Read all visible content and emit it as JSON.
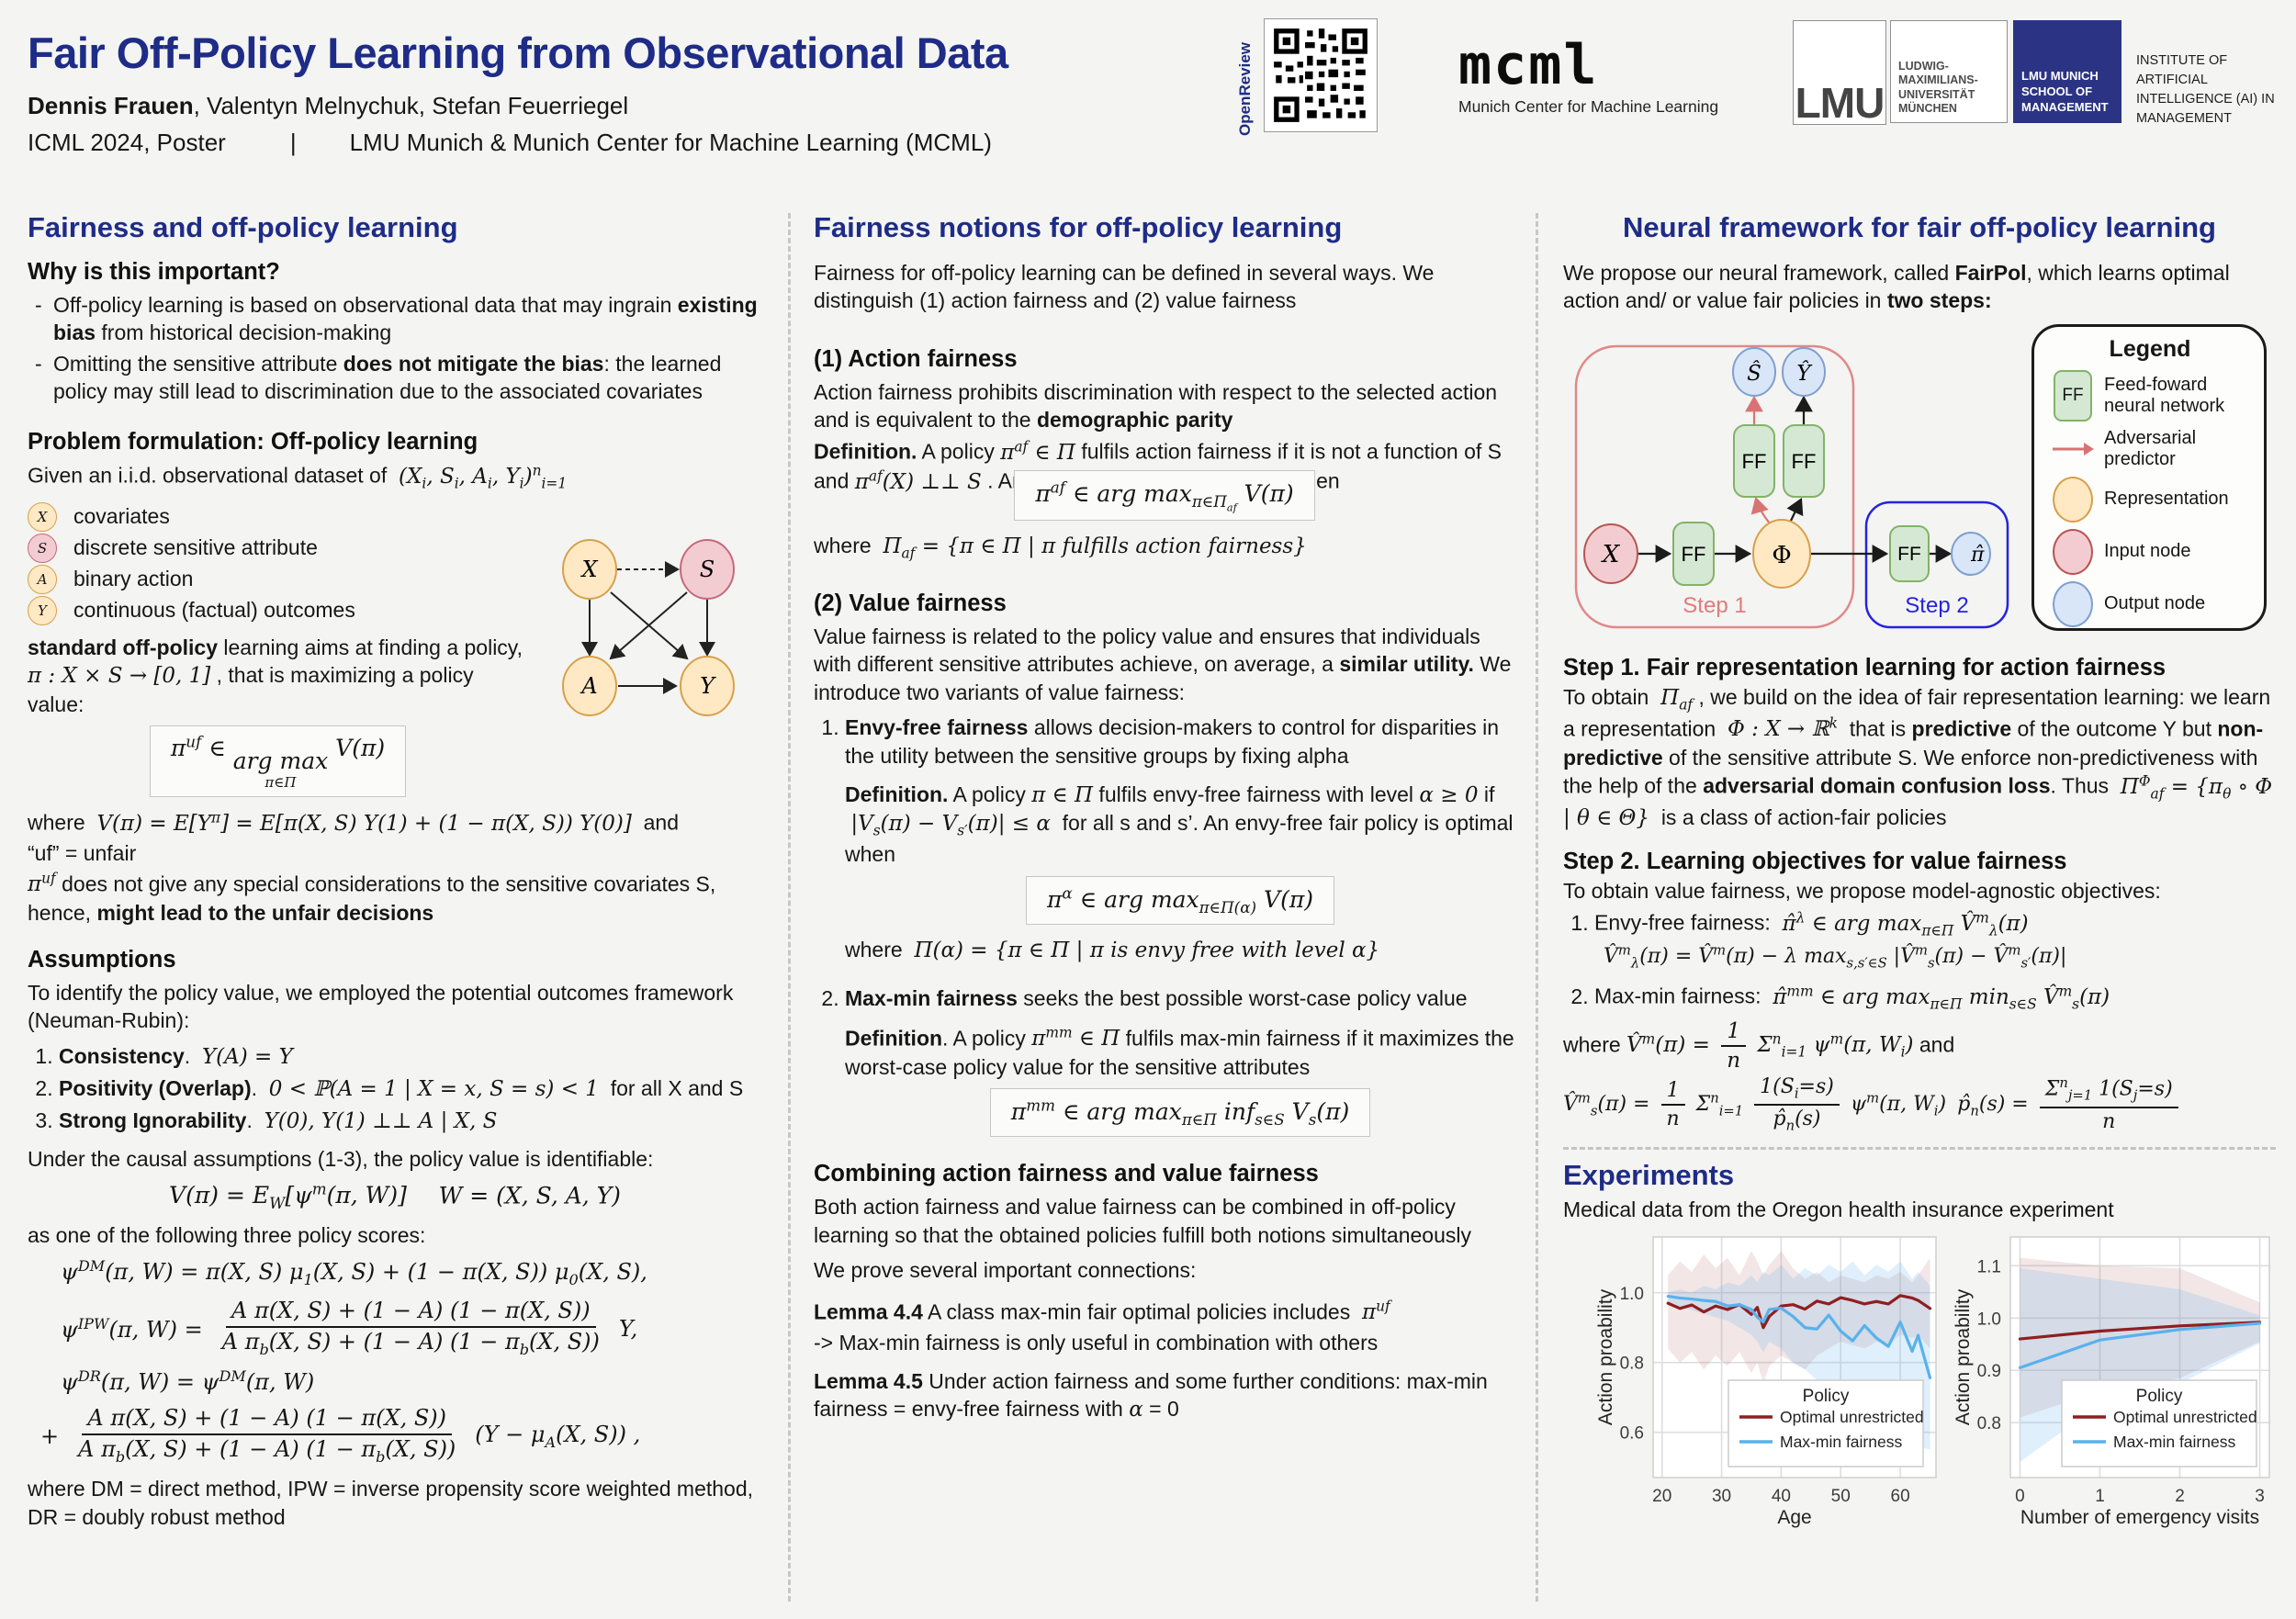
{
  "colors": {
    "accent_navy": "#1e2c87",
    "step1_red": "#e07b7b",
    "step2_blue": "#2424dd",
    "chart_red": "#8f1f1f",
    "chart_blue": "#58b2ec",
    "node_tan": "#ffe9c4",
    "node_pink": "#f3ccd1",
    "node_blue": "#d9e6f8",
    "ff_green": "#d5e8d4"
  },
  "header": {
    "title": "Fair Off-Policy Learning from Observational Data",
    "authors_bold": "Dennis Frauen",
    "authors_rest": ", Valentyn Melnychuk, Stefan Feuerriegel",
    "venue": "ICML 2024, Poster",
    "separator": "|",
    "affiliation": "LMU Munich & Munich Center for Machine Learning (MCML)",
    "openreview_label": "OpenReview",
    "mcml_logo": "mcml",
    "mcml_caption": "Munich Center for Machine Learning",
    "lmu_short": "LMU",
    "lmu_full_lines": [
      "LUDWIG-",
      "MAXIMILIANS-",
      "UNIVERSITÄT",
      "MÜNCHEN"
    ],
    "lmu_som_lines": [
      "LMU MUNICH",
      "SCHOOL OF",
      "MANAGEMENT"
    ],
    "institute_lines": [
      "INSTITUTE OF ARTIFICIAL",
      "INTELLIGENCE (AI) IN",
      "MANAGEMENT"
    ]
  },
  "col1": {
    "heading": "Fairness and off-policy learning",
    "why_heading": "Why is this important?",
    "bullets": [
      "Off-policy learning is based on observational data that may ingrain <b>existing bias</b> from historical decision-making",
      "Omitting the sensitive attribute <b>does not mitigate the bias</b>: the learned policy may still lead to discrimination due to the associated covariates"
    ],
    "problem_heading": "Problem formulation: Off-policy learning",
    "dataset_line": "Given an i.i.d. observational dataset of&nbsp; <i>(X<sub>i</sub>, S<sub>i</sub>, A<sub>i</sub>, Y<sub>i</sub>)<sup>n</sup><sub>i=1</sub></i>",
    "vars": [
      {
        "symbol": "X",
        "label": "covariates"
      },
      {
        "symbol": "S",
        "label": "discrete sensitive attribute"
      },
      {
        "symbol": "A",
        "label": "binary action"
      },
      {
        "symbol": "Y",
        "label": "continuous (factual) outcomes"
      }
    ],
    "graph": {
      "x": "X",
      "s": "S",
      "a": "A",
      "y": "Y"
    },
    "standard_para": "<b>standard off-policy</b> learning aims at finding a policy, <i>π : X × S → [0, 1]</i> , that is maximizing a policy value:",
    "formula_uf": "<i>π<sup>uf</sup> ∈ <span class='stack'><span class='top'>arg max</span><span class='bot'>π∈Π</span></span> V(π)</i>",
    "where_v": "where&nbsp; <i>V(π) = E[Y<sup>π</sup>] = E[π(X, S) Y(1) + (1 − π(X, S)) Y(0)]</i> &nbsp;and",
    "uf_unfair": "“uf” = unfair",
    "uf_para": "<i>π<sup>uf</sup></i> does not give any special considerations to the sensitive covariates S, hence, <b>might lead to the unfair decisions</b>",
    "assumptions_heading": "Assumptions",
    "assumptions_intro": "To identify the policy value, we employed the potential outcomes framework (Neuman-Rubin):",
    "assumptions": [
      "<b>Consistency</b>. &nbsp;<i>Y(A) = Y</i>",
      "<b>Positivity (Overlap)</b>. &nbsp;<i>0 &lt; ℙ(A = 1 | X = x, S = s) &lt; 1</i> &nbsp;for all X and S",
      "<b>Strong Ignorability</b>. &nbsp;<i>Y(0), Y(1) ⊥⊥ A | X, S</i>"
    ],
    "under_causal": "Under the causal assumptions (1-3), the policy value is identifiable:",
    "identifiable": "<i>V(π) = E<sub>W</sub>[ψ<sup>m</sup>(π, W)]</i>&nbsp;&nbsp;&nbsp;&nbsp;&nbsp;<i>W = (X, S, A, Y)</i>",
    "scores_intro": "as one of the following three policy scores:",
    "dm": "<i>ψ<sup>DM</sup>(π, W) = π(X, S) μ<sub>1</sub>(X, S) + (1 − π(X, S)) μ<sub>0</sub>(X, S),</i>",
    "ipw_lhs": "<i>ψ<sup>IPW</sup>(π, W) =</i>",
    "frac_num": "<i>A π(X, S) + (1 − A) (1 − π(X, S))</i>",
    "frac_den": "<i>A π<sub>b</sub>(X, S) + (1 − A) (1 − π<sub>b</sub>(X, S))</i>",
    "ipw_rhs": "<i>Y,</i>",
    "dr_line1": "<i>ψ<sup>DR</sup>(π, W) = ψ<sup>DM</sup>(π, W)</i>",
    "dr_plus": "+",
    "dr_rhs": "<i>(Y − μ<sub>A</sub>(X, S)) ,</i>",
    "methods_note": "where DM = direct method, IPW = inverse propensity score weighted method, DR = doubly robust method"
  },
  "col2": {
    "heading": "Fairness notions for off-policy learning",
    "intro": "Fairness for off-policy learning can be defined in several ways. We distinguish (1) action fairness and (2) value fairness",
    "af_heading": "(1) Action fairness",
    "af_intro": "Action fairness prohibits discrimination with respect to the selected action and is equivalent to the <b>demographic parity</b>",
    "af_def": "<b>Definition.</b> A policy <i>π<sup>af</sup> ∈ Π</i> fulfils action fairness if it is not a function of S and <i>π<sup>af</sup>(X) ⊥⊥ S</i> . An action-fair policy is optimal, when",
    "af_box": "<i>π<sup>af</sup> ∈ arg max<sub>π∈Π<sub>af</sub></sub> V(π)</i>",
    "af_where": "where&nbsp; <i>Π<sub>af</sub> = {π ∈ Π | π fulfills action fairness}</i>",
    "vf_heading": "(2) Value fairness",
    "vf_intro": "Value fairness is related to the policy value and ensures that individuals with different sensitive attributes achieve, on average, a <b>similar utility.</b> We introduce two variants of value fairness:",
    "ef_item": "<b>Envy-free fairness</b> allows decision-makers to control for disparities in the utility between the sensitive groups by fixing alpha",
    "ef_def": "<b>Definition.</b> A policy <i>π ∈ Π</i> fulfils envy-free fairness with level <i>α ≥ 0</i> if &nbsp;<i>|V<sub>s</sub>(π) − V<sub>s′</sub>(π)| ≤ α</i>&nbsp; for all s and s’. An envy-free fair policy is optimal when",
    "ef_box": "<i>π<sup>α</sup> ∈ arg max<sub>π∈Π(α)</sub> V(π)</i>",
    "ef_where": "where&nbsp; <i>Π(α) = {π ∈ Π | π is envy free with level α}</i>",
    "mm_item": "<b>Max-min fairness</b> seeks the best possible worst-case policy value",
    "mm_def": "<b>Definition</b>. A policy <i>π<sup>mm</sup> ∈ Π</i> fulfils max-min fairness if it maximizes the worst-case policy value for the sensitive attributes",
    "mm_box": "<i>π<sup>mm</sup> ∈ arg max<sub>π∈Π</sub> inf<sub>s∈S</sub> V<sub>s</sub>(π)</i>",
    "comb_heading": "Combining action fairness and value fairness",
    "comb_p1": "Both action fairness and value fairness can be combined in off-policy learning so that the obtained policies fulfill both notions simultaneously",
    "comb_p2": "We prove several important connections:",
    "lemma44": "<b>Lemma 4.4</b> A class max-min fair optimal policies includes&nbsp; <i>π<sup>uf</sup></i>",
    "lemma44_note": "-> Max-min fairness is only useful in combination with others",
    "lemma45": "<b>Lemma 4.5</b> Under action fairness and some further conditions: max-min fairness = envy-free fairness with <i>α</i> = 0"
  },
  "col3": {
    "heading": "Neural framework for fair off-policy learning",
    "intro": "We propose our neural framework, called <b>FairPol</b>, which learns optimal action and/ or value fair policies in <b>two steps:</b>",
    "diagram": {
      "step1_label": "Step 1",
      "step2_label": "Step 2",
      "nodes": {
        "x": "X",
        "phi": "Φ",
        "shat": "Ŝ",
        "yhat": "Ŷ",
        "pihat": "π̂",
        "ff": "FF"
      },
      "legend": {
        "title": "Legend",
        "items": [
          "Feed-foward neural network",
          "Adversarial predictor",
          "Representation",
          "Input node",
          "Output node"
        ]
      }
    },
    "step1_heading": "Step 1. Fair representation learning for action fairness",
    "step1_body": "To obtain&nbsp; <i>Π<sub>af</sub></i> , we build on the idea of fair representation learning: we learn a representation&nbsp; <i>Φ : X → ℝ<sup>k</sup></i>&nbsp; that is <b>predictive</b> of the outcome Y but <b>non-predictive</b> of the sensitive attribute S. We enforce non-predictiveness with the help of the <b>adversarial domain confusion loss</b>. Thus&nbsp; <i>Π<sup>Φ</sup><sub>af</sub> = {π<sub>θ</sub> ∘ Φ | θ ∈ Θ}</i>&nbsp; is a class of action-fair policies",
    "step2_heading": "Step 2. Learning objectives for value fairness",
    "step2_intro": "To obtain value fairness, we propose model-agnostic objectives:",
    "obj1": "Envy-free fairness: &nbsp;<i>π̂<sup>λ</sup> ∈ arg max<sub>π∈Π</sub> V̂<sup>m</sup><sub>λ</sub>(π)</i>",
    "obj1b": "<i>V̂<sup>m</sup><sub>λ</sub>(π) = V̂<sup>m</sup>(π) − λ max<sub>s,s′∈S</sub> |V̂<sup>m</sup><sub>s</sub>(π) − V̂<sup>m</sup><sub>s′</sub>(π)|</i>",
    "obj2": "Max-min fairness: &nbsp;<i>π̂<sup>mm</sup> ∈ arg max<sub>π∈Π</sub> min<sub>s∈S</sub> V̂<sup>m</sup><sub>s</sub>(π)</i>",
    "where1": "where <i>V̂<sup>m</sup>(π) = <span class='frac'><span class='num'>1</span><span class='den'>n</span></span> Σ<sup>n</sup><sub>i=1</sub> ψ<sup>m</sup>(π, W<sub>i</sub>)</i> and",
    "where2": "<i>V̂<sup>m</sup><sub>s</sub>(π) = <span class='frac'><span class='num'>1</span><span class='den'>n</span></span> Σ<sup>n</sup><sub>i=1</sub> <span class='frac'><span class='num'>1(S<sub>i</sub>=s)</span><span class='den'>p̂<sub>n</sub>(s)</span></span> ψ<sup>m</sup>(π, W<sub>i</sub>)</i> &nbsp;<i>p̂<sub>n</sub>(s) = <span class='frac'><span class='num'>Σ<sup>n</sup><sub>j=1</sub> 1(S<sub>j</sub>=s)</span><span class='den'>n</span></span></i>",
    "experiments_heading": "Experiments",
    "experiments_intro": "Medical data from the Oregon health insurance experiment"
  },
  "chart_data": [
    {
      "type": "line",
      "title": "",
      "xlabel": "Age",
      "ylabel": "Action proability",
      "xlim": [
        18.5,
        66
      ],
      "ylim": [
        0.47,
        1.16
      ],
      "xticks": [
        20,
        30,
        40,
        50,
        60
      ],
      "xtick_labels": [
        "20",
        "30",
        "40",
        "50",
        "60"
      ],
      "yticks": [
        0.6,
        0.8,
        1.0
      ],
      "ytick_labels": [
        "0.6",
        "0.8",
        "1.0"
      ],
      "legend_title": "Policy",
      "legend_position": "lower right",
      "grid": true,
      "series": [
        {
          "name": "Optimal unrestricted",
          "color": "#8f1f1f",
          "x": [
            21,
            23,
            25,
            27,
            29,
            31,
            33,
            35,
            36,
            37,
            38,
            40,
            42,
            44,
            46,
            48,
            50,
            52,
            54,
            56,
            58,
            60,
            62,
            63,
            65
          ],
          "y": [
            0.97,
            0.955,
            0.965,
            0.945,
            0.962,
            0.952,
            0.966,
            0.938,
            0.958,
            0.9,
            0.932,
            0.962,
            0.966,
            0.953,
            0.976,
            0.968,
            0.986,
            0.978,
            0.968,
            0.975,
            0.968,
            0.992,
            0.985,
            0.978,
            0.955
          ]
        },
        {
          "name": "Max-min fairness",
          "color": "#58b2ec",
          "x": [
            21,
            23,
            25,
            27,
            29,
            31,
            33,
            35,
            36,
            37,
            38,
            40,
            42,
            44,
            46,
            48,
            50,
            52,
            54,
            56,
            58,
            60,
            62,
            63,
            65
          ],
          "y": [
            0.99,
            0.985,
            0.982,
            0.978,
            0.975,
            0.962,
            0.966,
            0.952,
            0.93,
            0.916,
            0.952,
            0.956,
            0.932,
            0.9,
            0.896,
            0.936,
            0.89,
            0.862,
            0.906,
            0.87,
            0.846,
            0.916,
            0.832,
            0.878,
            0.756
          ]
        }
      ],
      "bands": [
        {
          "color": "rgba(165,85,85,0.15)",
          "x": [
            21,
            23,
            25,
            27,
            29,
            31,
            33,
            35,
            36,
            37,
            38,
            40,
            42,
            44,
            46,
            48,
            50,
            52,
            54,
            56,
            58,
            60,
            62,
            63,
            65
          ],
          "upper": [
            1.05,
            1.09,
            1.06,
            1.11,
            1.07,
            1.1,
            1.05,
            1.12,
            1.09,
            1.05,
            1.08,
            1.12,
            1.07,
            1.04,
            1.06,
            1.03,
            1.05,
            1.04,
            1.03,
            1.05,
            1.04,
            1.06,
            1.03,
            1.05,
            1.1
          ],
          "lower": [
            0.84,
            0.8,
            0.83,
            0.78,
            0.82,
            0.79,
            0.83,
            0.77,
            0.8,
            0.74,
            0.79,
            0.82,
            0.8,
            0.78,
            0.82,
            0.84,
            0.86,
            0.85,
            0.84,
            0.86,
            0.85,
            0.88,
            0.87,
            0.88,
            0.84
          ]
        },
        {
          "color": "rgba(110,180,235,0.22)",
          "x": [
            21,
            23,
            25,
            27,
            29,
            31,
            33,
            35,
            36,
            37,
            38,
            40,
            42,
            44,
            46,
            48,
            50,
            52,
            54,
            56,
            58,
            60,
            62,
            63,
            65
          ],
          "upper": [
            1.0,
            1.01,
            1.0,
            1.02,
            1.01,
            1.03,
            1.02,
            1.05,
            1.03,
            1.06,
            1.05,
            1.08,
            1.04,
            1.07,
            1.05,
            1.08,
            1.06,
            1.09,
            1.05,
            1.08,
            1.06,
            1.09,
            1.04,
            1.06,
            1.02
          ],
          "lower": [
            0.97,
            0.96,
            0.95,
            0.94,
            0.93,
            0.92,
            0.9,
            0.88,
            0.86,
            0.83,
            0.86,
            0.84,
            0.8,
            0.78,
            0.75,
            0.73,
            0.7,
            0.68,
            0.66,
            0.64,
            0.62,
            0.6,
            0.57,
            0.56,
            0.55
          ]
        }
      ]
    },
    {
      "type": "line",
      "title": "",
      "xlabel": "Number of emergency visits",
      "ylabel": "Action proability",
      "xlim": [
        -0.12,
        3.12
      ],
      "ylim": [
        0.695,
        1.155
      ],
      "xticks": [
        0,
        1,
        2,
        3
      ],
      "xtick_labels": [
        "0",
        "1",
        "2",
        "3"
      ],
      "yticks": [
        0.8,
        0.9,
        1.0,
        1.1
      ],
      "ytick_labels": [
        "0.8",
        "0.9",
        "1.0",
        "1.1"
      ],
      "legend_title": "Policy",
      "legend_position": "lower right",
      "grid": true,
      "series": [
        {
          "name": "Optimal unrestricted",
          "color": "#8f1f1f",
          "x": [
            0,
            1,
            2,
            3
          ],
          "y": [
            0.96,
            0.975,
            0.985,
            0.992
          ]
        },
        {
          "name": "Max-min fairness",
          "color": "#58b2ec",
          "x": [
            0,
            1,
            2,
            3
          ],
          "y": [
            0.905,
            0.958,
            0.978,
            0.99
          ]
        }
      ],
      "bands": [
        {
          "color": "rgba(165,85,85,0.15)",
          "x": [
            0,
            1,
            2,
            3
          ],
          "upper": [
            1.115,
            1.1,
            1.095,
            1.03
          ],
          "lower": [
            0.81,
            0.86,
            0.885,
            0.955
          ]
        },
        {
          "color": "rgba(110,180,235,0.22)",
          "x": [
            0,
            1,
            2,
            3
          ],
          "upper": [
            1.095,
            1.075,
            1.055,
            1.005
          ],
          "lower": [
            0.725,
            0.835,
            0.875,
            0.952
          ]
        }
      ]
    }
  ]
}
